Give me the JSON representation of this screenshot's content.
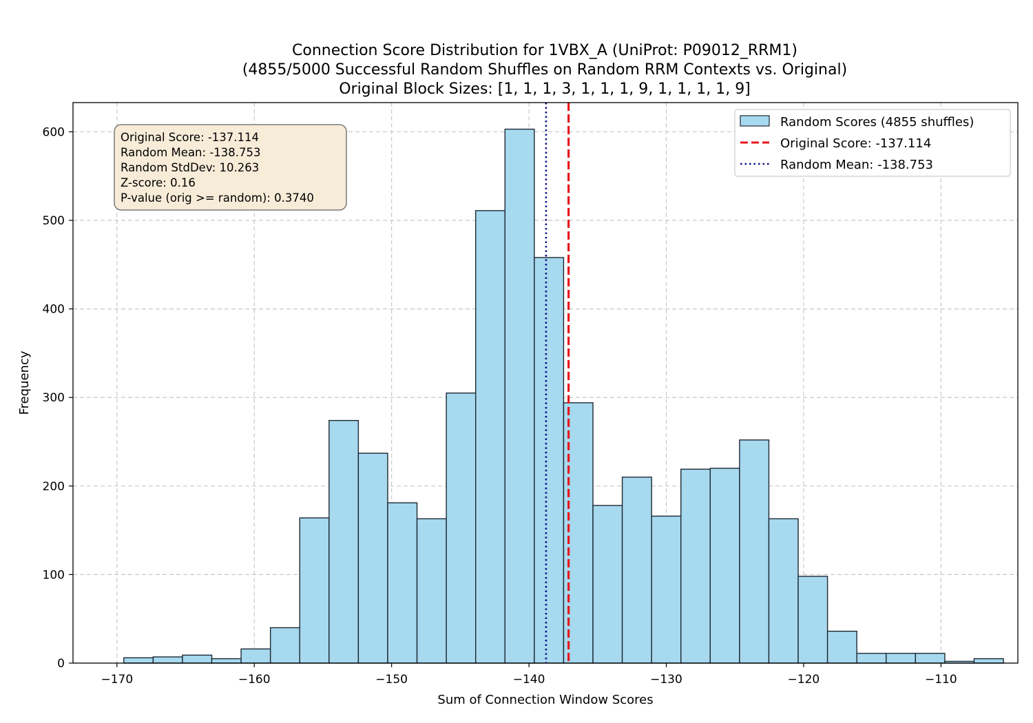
{
  "chart_data": {
    "type": "bar",
    "title_lines": [
      "Connection Score Distribution for 1VBX_A (UniProt: P09012_RRM1)",
      "(4855/5000 Successful Random Shuffles on Random RRM Contexts vs. Original)",
      "Original Block Sizes: [1, 1, 1, 3, 1, 1, 1, 9, 1, 1, 1, 1, 9]"
    ],
    "xlabel": "Sum of Connection Window Scores",
    "ylabel": "Frequency",
    "xlim": [
      -173.2,
      -104.4
    ],
    "ylim": [
      0,
      633
    ],
    "xticks": [
      -170,
      -160,
      -150,
      -140,
      -130,
      -120,
      -110
    ],
    "yticks": [
      0,
      100,
      200,
      300,
      400,
      500,
      600
    ],
    "xtick_labels": [
      "−170",
      "−160",
      "−150",
      "−140",
      "−130",
      "−120",
      "−110"
    ],
    "ytick_labels": [
      "0",
      "100",
      "200",
      "300",
      "400",
      "500",
      "600"
    ],
    "grid": true,
    "bin_start": -169.5,
    "bin_width": 2.135,
    "values": [
      6,
      7,
      9,
      5,
      16,
      40,
      164,
      274,
      237,
      181,
      163,
      305,
      511,
      603,
      458,
      294,
      178,
      210,
      166,
      219,
      220,
      252,
      163,
      98,
      36,
      11,
      11,
      11,
      2,
      5
    ],
    "bar_color": "#a7d9ef",
    "bar_edge_color": "#1c2833",
    "lines": [
      {
        "name": "Original Score: -137.114",
        "x": -137.114,
        "color": "#e8141b",
        "style": "dashed"
      },
      {
        "name": "Random Mean: -138.753",
        "x": -138.753,
        "color": "#101088",
        "style": "dotted"
      }
    ],
    "legend": {
      "position": "top-right",
      "entries": [
        "Random Scores (4855 shuffles)",
        "Original Score: -137.114",
        "Random Mean: -138.753"
      ]
    },
    "stats_box": {
      "lines": [
        "Original Score: -137.114",
        "Random Mean: -138.753",
        "Random StdDev: 10.263",
        "Z-score: 0.16",
        "P-value (orig >= random): 0.3740"
      ],
      "fill": "#f7ecd8",
      "stroke": "#7a7a7a"
    }
  }
}
